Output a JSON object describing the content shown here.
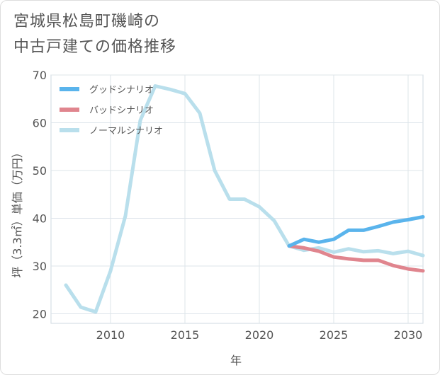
{
  "title_lines": [
    "宮城県松島町磯崎の",
    "中古戸建ての価格推移"
  ],
  "chart_data": {
    "type": "line",
    "title": "宮城県松島町磯崎の中古戸建ての価格推移",
    "xlabel": "年",
    "ylabel": "坪（3.3㎡）単価（万円）",
    "xlim": [
      2006,
      2031
    ],
    "ylim": [
      18,
      70
    ],
    "xticks": [
      2010,
      2015,
      2020,
      2025,
      2030
    ],
    "yticks": [
      20,
      30,
      40,
      50,
      60,
      70
    ],
    "grid": true,
    "legend_position": "top-left",
    "series": [
      {
        "name": "グッドシナリオ",
        "color": "#5ab4ec",
        "x": [
          2022,
          2023,
          2024,
          2025,
          2026,
          2027,
          2028,
          2029,
          2030,
          2031
        ],
        "y": [
          34.2,
          35.6,
          35.0,
          35.6,
          37.5,
          37.5,
          38.3,
          39.2,
          39.7,
          40.3
        ]
      },
      {
        "name": "バッドシナリオ",
        "color": "#e0858e",
        "x": [
          2022,
          2023,
          2024,
          2025,
          2026,
          2027,
          2028,
          2029,
          2030,
          2031
        ],
        "y": [
          34.2,
          33.8,
          33.1,
          31.9,
          31.5,
          31.2,
          31.2,
          30.1,
          29.4,
          29.0
        ]
      },
      {
        "name": "ノーマルシナリオ",
        "color": "#b9dfec",
        "x": [
          2007,
          2008,
          2009,
          2010,
          2011,
          2012,
          2013,
          2014,
          2015,
          2016,
          2017,
          2018,
          2019,
          2020,
          2021,
          2022,
          2023,
          2024,
          2025,
          2026,
          2027,
          2028,
          2029,
          2030,
          2031
        ],
        "y": [
          26.0,
          21.4,
          20.4,
          29.0,
          40.5,
          60.5,
          67.7,
          67.0,
          66.1,
          62.0,
          50.0,
          44.0,
          44.0,
          42.4,
          39.5,
          34.2,
          33.3,
          33.8,
          32.9,
          33.6,
          33.0,
          33.2,
          32.6,
          33.1,
          32.2
        ]
      }
    ]
  }
}
